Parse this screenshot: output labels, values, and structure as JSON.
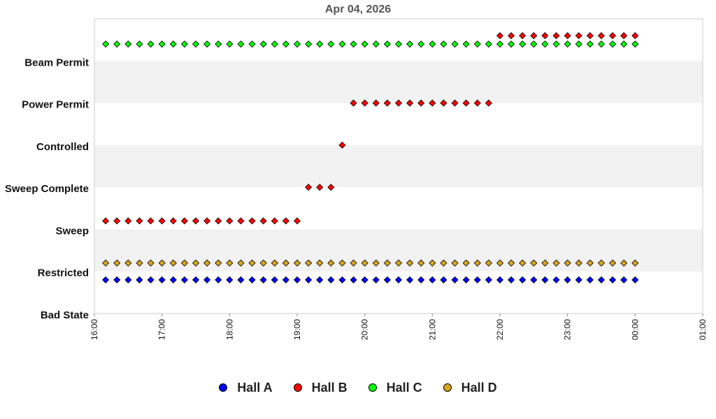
{
  "chart_data": {
    "type": "scatter",
    "title": "Apr 04, 2026",
    "y_categories": [
      "Bad State",
      "Restricted",
      "Sweep",
      "Sweep Complete",
      "Controlled",
      "Power Permit",
      "Beam Permit"
    ],
    "x_ticks": [
      "16:00",
      "17:00",
      "18:00",
      "19:00",
      "20:00",
      "21:00",
      "22:00",
      "23:00",
      "00:00",
      "01:00"
    ],
    "x_range": [
      "16:00",
      "01:00"
    ],
    "bands": "alternating white / light grey",
    "legend_position": "bottom-center",
    "series": [
      {
        "name": "Hall A",
        "color": "#0000ff",
        "segments": [
          {
            "state": "Restricted",
            "offset": -0.2,
            "start": "16:10",
            "end": "00:00"
          }
        ]
      },
      {
        "name": "Hall B",
        "color": "#ff0000",
        "segments": [
          {
            "state": "Sweep",
            "offset": 0.2,
            "start": "16:10",
            "end": "19:00"
          },
          {
            "state": "Sweep Complete",
            "offset": 0,
            "start": "19:10",
            "end": "19:30"
          },
          {
            "state": "Controlled",
            "offset": 0,
            "start": "19:40",
            "end": "19:40"
          },
          {
            "state": "Power Permit",
            "offset": 0,
            "start": "19:50",
            "end": "21:50"
          },
          {
            "state": "Beam Permit",
            "offset": 0.6,
            "start": "22:00",
            "end": "00:00"
          }
        ]
      },
      {
        "name": "Hall C",
        "color": "#00ff00",
        "segments": [
          {
            "state": "Beam Permit",
            "offset": 0.4,
            "start": "16:10",
            "end": "00:00"
          }
        ]
      },
      {
        "name": "Hall D",
        "color": "#daa520",
        "segments": [
          {
            "state": "Restricted",
            "offset": 0.2,
            "start": "16:10",
            "end": "00:00"
          }
        ]
      }
    ]
  }
}
